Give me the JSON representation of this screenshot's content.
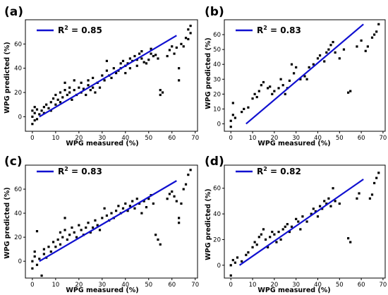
{
  "figure": {
    "panel_labels": [
      "(a)",
      "(b)",
      "(c)",
      "(d)"
    ]
  },
  "chart_data": [
    {
      "type": "scatter",
      "panel_label": "(a)",
      "xlabel": "WPG measured (%)",
      "ylabel": "WPG predicted (%)",
      "xlim": [
        -3,
        71
      ],
      "ylim": [
        -12,
        80
      ],
      "xticks": [
        0,
        10,
        20,
        30,
        40,
        50,
        60,
        70
      ],
      "yticks": [
        0,
        20,
        40,
        60
      ],
      "legend": {
        "label_base": "R",
        "label_sup": "2",
        "label_value": " = 0.85",
        "position": "top-left"
      },
      "fit_line": {
        "x": [
          3,
          62
        ],
        "y": [
          0,
          67
        ],
        "color": "#1010d0"
      },
      "marker_color": "#000000",
      "points": [
        [
          0,
          0
        ],
        [
          1,
          3
        ],
        [
          0,
          5
        ],
        [
          2,
          -2
        ],
        [
          1,
          8
        ],
        [
          3,
          2
        ],
        [
          2,
          6
        ],
        [
          0,
          -6
        ],
        [
          1,
          -3
        ],
        [
          4,
          5
        ],
        [
          5,
          3
        ],
        [
          5,
          8
        ],
        [
          6,
          10
        ],
        [
          7,
          7
        ],
        [
          8,
          12
        ],
        [
          8,
          5
        ],
        [
          9,
          15
        ],
        [
          10,
          10
        ],
        [
          11,
          14
        ],
        [
          10,
          18
        ],
        [
          12,
          20
        ],
        [
          12,
          12
        ],
        [
          13,
          16
        ],
        [
          14,
          22
        ],
        [
          14,
          28
        ],
        [
          15,
          18
        ],
        [
          16,
          20
        ],
        [
          16,
          24
        ],
        [
          17,
          14
        ],
        [
          18,
          22
        ],
        [
          18,
          30
        ],
        [
          19,
          18
        ],
        [
          20,
          24
        ],
        [
          21,
          20
        ],
        [
          21,
          28
        ],
        [
          22,
          23
        ],
        [
          23,
          18
        ],
        [
          24,
          26
        ],
        [
          24,
          30
        ],
        [
          25,
          22
        ],
        [
          26,
          24
        ],
        [
          26,
          32
        ],
        [
          27,
          20
        ],
        [
          28,
          28
        ],
        [
          29,
          24
        ],
        [
          30,
          34
        ],
        [
          31,
          30
        ],
        [
          32,
          46
        ],
        [
          32,
          38
        ],
        [
          33,
          34
        ],
        [
          34,
          32
        ],
        [
          35,
          40
        ],
        [
          36,
          36
        ],
        [
          37,
          38
        ],
        [
          38,
          40
        ],
        [
          38,
          44
        ],
        [
          39,
          46
        ],
        [
          40,
          36
        ],
        [
          40,
          42
        ],
        [
          41,
          44
        ],
        [
          42,
          48
        ],
        [
          42,
          40
        ],
        [
          43,
          46
        ],
        [
          44,
          50
        ],
        [
          45,
          42
        ],
        [
          45,
          47
        ],
        [
          46,
          52
        ],
        [
          47,
          48
        ],
        [
          47,
          54
        ],
        [
          48,
          45
        ],
        [
          49,
          44
        ],
        [
          50,
          47
        ],
        [
          51,
          52
        ],
        [
          51,
          56
        ],
        [
          52,
          50
        ],
        [
          53,
          51
        ],
        [
          54,
          48
        ],
        [
          55,
          22
        ],
        [
          55,
          18
        ],
        [
          56,
          20
        ],
        [
          58,
          50
        ],
        [
          59,
          55
        ],
        [
          60,
          58
        ],
        [
          61,
          52
        ],
        [
          62,
          57
        ],
        [
          63,
          30
        ],
        [
          63,
          40
        ],
        [
          64,
          60
        ],
        [
          65,
          58
        ],
        [
          66,
          65
        ],
        [
          67,
          64
        ],
        [
          67,
          72
        ],
        [
          68,
          69
        ],
        [
          68,
          75
        ]
      ]
    },
    {
      "type": "scatter",
      "panel_label": "(b)",
      "xlabel": "WPG measured (%)",
      "ylabel": "WPG predicted (%)",
      "xlim": [
        -3,
        71
      ],
      "ylim": [
        -5,
        70
      ],
      "xticks": [
        0,
        10,
        20,
        30,
        40,
        50,
        60,
        70
      ],
      "yticks": [
        0,
        10,
        20,
        30,
        40,
        50,
        60
      ],
      "legend": {
        "label_base": "R",
        "label_sup": "2",
        "label_value": " = 0.83",
        "position": "top-left"
      },
      "fit_line": {
        "x": [
          7,
          61
        ],
        "y": [
          0,
          67
        ],
        "color": "#1010d0"
      },
      "marker_color": "#000000",
      "points": [
        [
          0,
          -2
        ],
        [
          0,
          2
        ],
        [
          1,
          6
        ],
        [
          1,
          14
        ],
        [
          2,
          4
        ],
        [
          5,
          8
        ],
        [
          6,
          10
        ],
        [
          8,
          11
        ],
        [
          10,
          17
        ],
        [
          11,
          20
        ],
        [
          12,
          18
        ],
        [
          13,
          22
        ],
        [
          14,
          26
        ],
        [
          15,
          28
        ],
        [
          17,
          24
        ],
        [
          18,
          25
        ],
        [
          19,
          20
        ],
        [
          20,
          22
        ],
        [
          22,
          24
        ],
        [
          23,
          30
        ],
        [
          24,
          26
        ],
        [
          25,
          20
        ],
        [
          26,
          24
        ],
        [
          27,
          29
        ],
        [
          28,
          40
        ],
        [
          29,
          34
        ],
        [
          30,
          38
        ],
        [
          32,
          30
        ],
        [
          34,
          32
        ],
        [
          35,
          30
        ],
        [
          36,
          38
        ],
        [
          38,
          40
        ],
        [
          40,
          44
        ],
        [
          41,
          46
        ],
        [
          43,
          42
        ],
        [
          44,
          48
        ],
        [
          45,
          50
        ],
        [
          46,
          53
        ],
        [
          47,
          55
        ],
        [
          48,
          48
        ],
        [
          50,
          44
        ],
        [
          52,
          50
        ],
        [
          54,
          21
        ],
        [
          55,
          22
        ],
        [
          58,
          52
        ],
        [
          60,
          56
        ],
        [
          62,
          49
        ],
        [
          63,
          52
        ],
        [
          65,
          58
        ],
        [
          66,
          60
        ],
        [
          67,
          62
        ],
        [
          68,
          67
        ]
      ]
    },
    {
      "type": "scatter",
      "panel_label": "(c)",
      "xlabel": "WPG measured (%)",
      "ylabel": "WPG predicted (%)",
      "xlim": [
        -3,
        71
      ],
      "ylim": [
        -14,
        80
      ],
      "xticks": [
        0,
        10,
        20,
        30,
        40,
        50,
        60,
        70
      ],
      "yticks": [
        0,
        20,
        40,
        60
      ],
      "legend": {
        "label_base": "R",
        "label_sup": "2",
        "label_value": " = 0.83",
        "position": "top-left"
      },
      "fit_line": {
        "x": [
          3,
          62
        ],
        "y": [
          0,
          67
        ],
        "color": "#1010d0"
      },
      "marker_color": "#000000",
      "points": [
        [
          0,
          0
        ],
        [
          0,
          -6
        ],
        [
          1,
          4
        ],
        [
          1,
          8
        ],
        [
          2,
          -3
        ],
        [
          2,
          25
        ],
        [
          3,
          2
        ],
        [
          4,
          -12
        ],
        [
          5,
          6
        ],
        [
          5,
          10
        ],
        [
          6,
          3
        ],
        [
          7,
          12
        ],
        [
          8,
          8
        ],
        [
          9,
          16
        ],
        [
          10,
          12
        ],
        [
          11,
          18
        ],
        [
          12,
          14
        ],
        [
          12,
          24
        ],
        [
          13,
          20
        ],
        [
          14,
          26
        ],
        [
          14,
          36
        ],
        [
          15,
          18
        ],
        [
          16,
          22
        ],
        [
          17,
          28
        ],
        [
          18,
          24
        ],
        [
          19,
          20
        ],
        [
          20,
          30
        ],
        [
          21,
          26
        ],
        [
          22,
          22
        ],
        [
          23,
          28
        ],
        [
          24,
          32
        ],
        [
          25,
          24
        ],
        [
          26,
          28
        ],
        [
          27,
          34
        ],
        [
          28,
          30
        ],
        [
          29,
          26
        ],
        [
          30,
          36
        ],
        [
          31,
          44
        ],
        [
          32,
          38
        ],
        [
          33,
          34
        ],
        [
          34,
          40
        ],
        [
          35,
          36
        ],
        [
          36,
          42
        ],
        [
          37,
          46
        ],
        [
          38,
          40
        ],
        [
          39,
          44
        ],
        [
          40,
          48
        ],
        [
          41,
          42
        ],
        [
          42,
          46
        ],
        [
          43,
          50
        ],
        [
          44,
          44
        ],
        [
          45,
          52
        ],
        [
          46,
          48
        ],
        [
          47,
          40
        ],
        [
          48,
          50
        ],
        [
          49,
          45
        ],
        [
          50,
          52
        ],
        [
          51,
          55
        ],
        [
          52,
          48
        ],
        [
          53,
          22
        ],
        [
          54,
          18
        ],
        [
          55,
          14
        ],
        [
          58,
          52
        ],
        [
          59,
          56
        ],
        [
          60,
          58
        ],
        [
          61,
          54
        ],
        [
          62,
          50
        ],
        [
          63,
          36
        ],
        [
          63,
          32
        ],
        [
          64,
          48
        ],
        [
          65,
          60
        ],
        [
          66,
          64
        ],
        [
          67,
          72
        ],
        [
          68,
          76
        ]
      ]
    },
    {
      "type": "scatter",
      "panel_label": "(d)",
      "xlabel": "WPG measured (%)",
      "ylabel": "WPG predicted (%)",
      "xlim": [
        -3,
        71
      ],
      "ylim": [
        -10,
        78
      ],
      "xticks": [
        0,
        10,
        20,
        30,
        40,
        50,
        60,
        70
      ],
      "yticks": [
        0,
        20,
        40,
        60
      ],
      "legend": {
        "label_base": "R",
        "label_sup": "2",
        "label_value": " = 0.82",
        "position": "top-left"
      },
      "fit_line": {
        "x": [
          4,
          61
        ],
        "y": [
          0,
          67
        ],
        "color": "#1010d0"
      },
      "marker_color": "#000000",
      "points": [
        [
          0,
          -8
        ],
        [
          0,
          0
        ],
        [
          1,
          4
        ],
        [
          2,
          2
        ],
        [
          3,
          6
        ],
        [
          5,
          3
        ],
        [
          7,
          8
        ],
        [
          8,
          10
        ],
        [
          10,
          14
        ],
        [
          11,
          18
        ],
        [
          12,
          16
        ],
        [
          13,
          22
        ],
        [
          14,
          24
        ],
        [
          15,
          28
        ],
        [
          16,
          20
        ],
        [
          17,
          14
        ],
        [
          18,
          22
        ],
        [
          19,
          26
        ],
        [
          20,
          24
        ],
        [
          21,
          18
        ],
        [
          22,
          26
        ],
        [
          23,
          20
        ],
        [
          24,
          28
        ],
        [
          25,
          30
        ],
        [
          26,
          32
        ],
        [
          27,
          26
        ],
        [
          28,
          30
        ],
        [
          30,
          36
        ],
        [
          31,
          34
        ],
        [
          32,
          28
        ],
        [
          33,
          38
        ],
        [
          35,
          34
        ],
        [
          37,
          40
        ],
        [
          38,
          44
        ],
        [
          39,
          42
        ],
        [
          40,
          38
        ],
        [
          41,
          46
        ],
        [
          42,
          44
        ],
        [
          43,
          50
        ],
        [
          44,
          48
        ],
        [
          45,
          52
        ],
        [
          46,
          46
        ],
        [
          47,
          60
        ],
        [
          48,
          50
        ],
        [
          50,
          48
        ],
        [
          54,
          21
        ],
        [
          55,
          18
        ],
        [
          58,
          52
        ],
        [
          59,
          56
        ],
        [
          64,
          52
        ],
        [
          65,
          55
        ],
        [
          66,
          64
        ],
        [
          67,
          68
        ],
        [
          68,
          72
        ]
      ]
    }
  ]
}
